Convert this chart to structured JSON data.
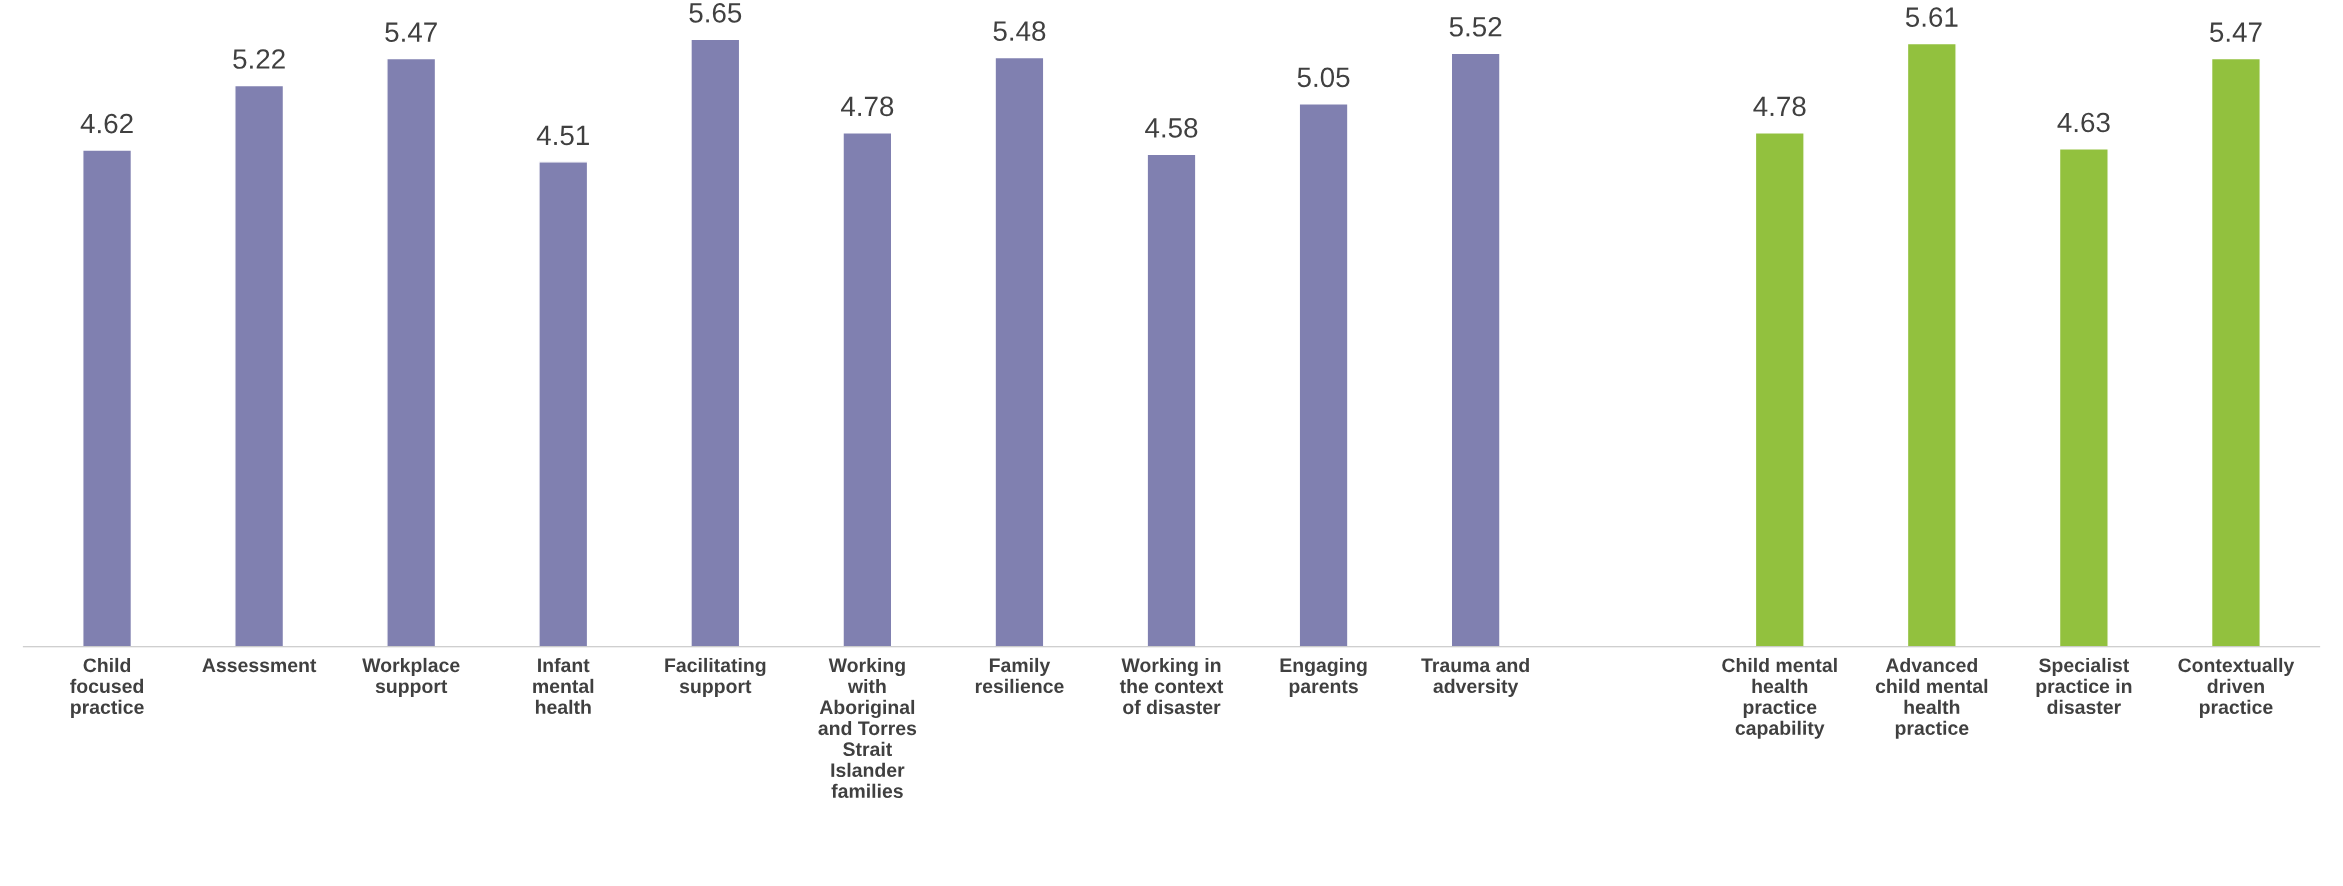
{
  "chart_data": {
    "type": "bar",
    "categories": [
      "Child\nfocused\npractice",
      "Assessment",
      "Workplace\nsupport",
      "Infant\nmental\nhealth",
      "Facilitating\nsupport",
      "Working\nwith\nAboriginal\nand Torres\nStrait\nIslander\nfamilies",
      "Family\nresilience",
      "Working in\nthe context\nof disaster",
      "Engaging\nparents",
      "Trauma and\nadversity",
      null,
      "Child mental\nhealth\npractice\ncapability",
      "Advanced\nchild mental\nhealth\npractice",
      "Specialist\npractice in\ndisaster",
      "Contextually\ndriven\npractice"
    ],
    "values": [
      4.62,
      5.22,
      5.47,
      4.51,
      5.65,
      4.78,
      5.48,
      4.58,
      5.05,
      5.52,
      null,
      4.78,
      5.61,
      4.63,
      5.47
    ],
    "colors": [
      "#8080b0",
      "#8080b0",
      "#8080b0",
      "#8080b0",
      "#8080b0",
      "#8080b0",
      "#8080b0",
      "#8080b0",
      "#8080b0",
      "#8080b0",
      null,
      "#92c13e",
      "#92c13e",
      "#92c13e",
      "#92c13e"
    ],
    "data_labels": true,
    "grid": false,
    "tick_labels": "x"
  }
}
